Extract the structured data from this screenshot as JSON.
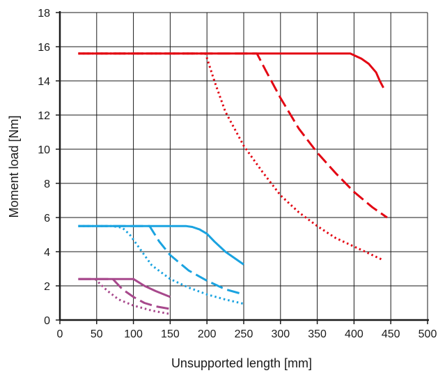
{
  "chart_data": {
    "type": "line",
    "title": "",
    "xlabel": "Unsupported length [mm]",
    "ylabel": "Moment load [Nm]",
    "xlim": [
      0,
      500
    ],
    "ylim": [
      0,
      18
    ],
    "x_ticks": [
      "0",
      "50",
      "100",
      "150",
      "200",
      "250",
      "300",
      "350",
      "400",
      "450",
      "500"
    ],
    "y_ticks": [
      "0",
      "2",
      "4",
      "6",
      "8",
      "10",
      "12",
      "14",
      "16",
      "18"
    ],
    "grid": true,
    "legend": "none",
    "series": [
      {
        "color": "#e30613",
        "dash": "solid",
        "points": [
          [
            25,
            15.6
          ],
          [
            395,
            15.6
          ],
          [
            410,
            15.3
          ],
          [
            420,
            15.0
          ],
          [
            430,
            14.5
          ],
          [
            435,
            14.0
          ],
          [
            440,
            13.6
          ]
        ]
      },
      {
        "color": "#e30613",
        "dash": "dashed",
        "points": [
          [
            25,
            15.6
          ],
          [
            268,
            15.6
          ],
          [
            280,
            14.6
          ],
          [
            300,
            13.0
          ],
          [
            325,
            11.2
          ],
          [
            350,
            9.8
          ],
          [
            375,
            8.6
          ],
          [
            400,
            7.5
          ],
          [
            425,
            6.6
          ],
          [
            445,
            6.0
          ]
        ]
      },
      {
        "color": "#e30613",
        "dash": "dotted",
        "points": [
          [
            25,
            15.6
          ],
          [
            198,
            15.6
          ],
          [
            210,
            14.0
          ],
          [
            225,
            12.2
          ],
          [
            250,
            10.2
          ],
          [
            275,
            8.7
          ],
          [
            300,
            7.3
          ],
          [
            325,
            6.3
          ],
          [
            350,
            5.5
          ],
          [
            375,
            4.8
          ],
          [
            400,
            4.3
          ],
          [
            425,
            3.8
          ],
          [
            440,
            3.5
          ]
        ]
      },
      {
        "color": "#1aa3e0",
        "dash": "solid",
        "points": [
          [
            25,
            5.5
          ],
          [
            172,
            5.5
          ],
          [
            180,
            5.45
          ],
          [
            190,
            5.3
          ],
          [
            200,
            5.05
          ],
          [
            210,
            4.6
          ],
          [
            225,
            4.0
          ],
          [
            240,
            3.55
          ],
          [
            250,
            3.25
          ]
        ]
      },
      {
        "color": "#1aa3e0",
        "dash": "dashed",
        "points": [
          [
            25,
            5.5
          ],
          [
            122,
            5.5
          ],
          [
            135,
            4.6
          ],
          [
            150,
            3.8
          ],
          [
            175,
            2.9
          ],
          [
            200,
            2.3
          ],
          [
            225,
            1.8
          ],
          [
            250,
            1.5
          ]
        ]
      },
      {
        "color": "#1aa3e0",
        "dash": "dotted",
        "points": [
          [
            25,
            5.5
          ],
          [
            72,
            5.5
          ],
          [
            85,
            5.4
          ],
          [
            95,
            5.0
          ],
          [
            105,
            4.4
          ],
          [
            115,
            3.8
          ],
          [
            125,
            3.2
          ],
          [
            150,
            2.4
          ],
          [
            175,
            1.9
          ],
          [
            200,
            1.5
          ],
          [
            225,
            1.2
          ],
          [
            250,
            0.95
          ]
        ]
      },
      {
        "color": "#a7488c",
        "dash": "solid",
        "points": [
          [
            25,
            2.4
          ],
          [
            100,
            2.4
          ],
          [
            115,
            2.0
          ],
          [
            130,
            1.7
          ],
          [
            150,
            1.35
          ]
        ]
      },
      {
        "color": "#a7488c",
        "dash": "dashed",
        "points": [
          [
            25,
            2.4
          ],
          [
            72,
            2.4
          ],
          [
            85,
            1.8
          ],
          [
            100,
            1.35
          ],
          [
            115,
            1.0
          ],
          [
            130,
            0.8
          ],
          [
            150,
            0.65
          ]
        ]
      },
      {
        "color": "#a7488c",
        "dash": "dotted",
        "points": [
          [
            48,
            2.4
          ],
          [
            55,
            2.1
          ],
          [
            65,
            1.7
          ],
          [
            80,
            1.2
          ],
          [
            100,
            0.85
          ],
          [
            125,
            0.55
          ],
          [
            150,
            0.35
          ]
        ]
      }
    ]
  }
}
